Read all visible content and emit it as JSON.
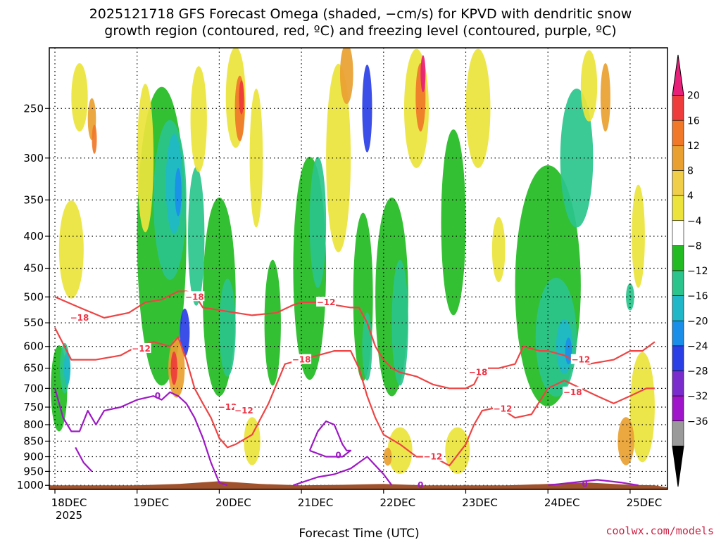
{
  "chart_data": {
    "type": "heatmap",
    "title_lines": [
      "2025121718 GFS Forecast Omega (shaded, −cm/s) for KPVD with dendritic snow",
      "growth region (contoured, red, ºC) and freezing level (contoured, purple, ºC)"
    ],
    "xlabel": "Forecast Time (UTC)",
    "ylabel": "",
    "x_ticks": [
      "18DEC",
      "19DEC",
      "20DEC",
      "21DEC",
      "22DEC",
      "23DEC",
      "24DEC",
      "25DEC"
    ],
    "x_year_label": "2025",
    "y_ticks": [
      250,
      300,
      350,
      400,
      450,
      500,
      550,
      600,
      650,
      700,
      750,
      800,
      850,
      900,
      950,
      1000
    ],
    "ylim_hpa": [
      200,
      1015
    ],
    "y_scale": "log",
    "grid": "dotted",
    "colorbar": {
      "labels": [
        "20",
        "16",
        "12",
        "8",
        "4",
        "−4",
        "−8",
        "−12",
        "−16",
        "−20",
        "−24",
        "−28",
        "−32",
        "−36"
      ],
      "colors": [
        "#e8207a",
        "#ee3b3b",
        "#f07828",
        "#e9a030",
        "#f1ce4a",
        "#ece43c",
        "#ffffff",
        "#22bb22",
        "#2ac48c",
        "#20b8c8",
        "#1a8ee8",
        "#2a40e6",
        "#7a2ccc",
        "#a015cc",
        "#9a9a9a",
        "#000000"
      ]
    },
    "red_contour_labels": [
      "−18",
      "−12",
      "−18",
      "−12",
      "−12",
      "−18",
      "−12",
      "−18",
      "−12",
      "−12",
      "−18",
      "−12"
    ],
    "purple_contour_labels": [
      "0",
      "0",
      "0",
      "0"
    ],
    "shaded_blobs": [
      {
        "t": 0.05,
        "p": 700,
        "dt": 0.1,
        "dp": 220,
        "c": "#22bb22"
      },
      {
        "t": 0.12,
        "p": 650,
        "dt": 0.06,
        "dp": 120,
        "c": "#2ac48c"
      },
      {
        "t": 0.15,
        "p": 650,
        "dt": 0.04,
        "dp": 80,
        "c": "#20b8c8"
      },
      {
        "t": 0.3,
        "p": 240,
        "dt": 0.1,
        "dp": 60,
        "c": "#ece43c"
      },
      {
        "t": 0.45,
        "p": 260,
        "dt": 0.05,
        "dp": 40,
        "c": "#e9a030"
      },
      {
        "t": 0.48,
        "p": 280,
        "dt": 0.03,
        "dp": 30,
        "c": "#f07828"
      },
      {
        "t": 0.2,
        "p": 420,
        "dt": 0.15,
        "dp": 150,
        "c": "#ece43c"
      },
      {
        "t": 1.3,
        "p": 400,
        "dt": 0.3,
        "dp": 400,
        "c": "#22bb22"
      },
      {
        "t": 1.4,
        "p": 350,
        "dt": 0.2,
        "dp": 200,
        "c": "#2ac48c"
      },
      {
        "t": 1.45,
        "p": 330,
        "dt": 0.1,
        "dp": 120,
        "c": "#20b8c8"
      },
      {
        "t": 1.5,
        "p": 340,
        "dt": 0.04,
        "dp": 60,
        "c": "#1a8ee8"
      },
      {
        "t": 1.58,
        "p": 570,
        "dt": 0.06,
        "dp": 100,
        "c": "#2a40e6"
      },
      {
        "t": 1.48,
        "p": 650,
        "dt": 0.1,
        "dp": 140,
        "c": "#e9a030"
      },
      {
        "t": 1.45,
        "p": 650,
        "dt": 0.04,
        "dp": 80,
        "c": "#ee3b3b"
      },
      {
        "t": 1.72,
        "p": 400,
        "dt": 0.1,
        "dp": 200,
        "c": "#2ac48c"
      },
      {
        "t": 1.1,
        "p": 300,
        "dt": 0.1,
        "dp": 160,
        "c": "#ece43c"
      },
      {
        "t": 1.75,
        "p": 260,
        "dt": 0.1,
        "dp": 100,
        "c": "#ece43c"
      },
      {
        "t": 2.2,
        "p": 240,
        "dt": 0.12,
        "dp": 100,
        "c": "#ece43c"
      },
      {
        "t": 2.25,
        "p": 250,
        "dt": 0.06,
        "dp": 60,
        "c": "#f07828"
      },
      {
        "t": 2.27,
        "p": 240,
        "dt": 0.03,
        "dp": 30,
        "c": "#ee3b3b"
      },
      {
        "t": 2.0,
        "p": 500,
        "dt": 0.2,
        "dp": 350,
        "c": "#22bb22"
      },
      {
        "t": 2.1,
        "p": 560,
        "dt": 0.1,
        "dp": 200,
        "c": "#2ac48c"
      },
      {
        "t": 2.45,
        "p": 300,
        "dt": 0.08,
        "dp": 150,
        "c": "#ece43c"
      },
      {
        "t": 2.4,
        "p": 850,
        "dt": 0.1,
        "dp": 150,
        "c": "#ece43c"
      },
      {
        "t": 2.65,
        "p": 550,
        "dt": 0.1,
        "dp": 250,
        "c": "#22bb22"
      },
      {
        "t": 3.1,
        "p": 450,
        "dt": 0.2,
        "dp": 350,
        "c": "#22bb22"
      },
      {
        "t": 3.2,
        "p": 380,
        "dt": 0.1,
        "dp": 180,
        "c": "#2ac48c"
      },
      {
        "t": 3.45,
        "p": 300,
        "dt": 0.15,
        "dp": 200,
        "c": "#ece43c"
      },
      {
        "t": 3.55,
        "p": 220,
        "dt": 0.08,
        "dp": 60,
        "c": "#e9a030"
      },
      {
        "t": 3.75,
        "p": 500,
        "dt": 0.12,
        "dp": 300,
        "c": "#22bb22"
      },
      {
        "t": 3.8,
        "p": 600,
        "dt": 0.06,
        "dp": 150,
        "c": "#2ac48c"
      },
      {
        "t": 3.8,
        "p": 250,
        "dt": 0.06,
        "dp": 80,
        "c": "#2a40e6"
      },
      {
        "t": 4.1,
        "p": 500,
        "dt": 0.2,
        "dp": 350,
        "c": "#22bb22"
      },
      {
        "t": 4.2,
        "p": 550,
        "dt": 0.1,
        "dp": 250,
        "c": "#2ac48c"
      },
      {
        "t": 4.4,
        "p": 250,
        "dt": 0.15,
        "dp": 120,
        "c": "#ece43c"
      },
      {
        "t": 4.45,
        "p": 240,
        "dt": 0.06,
        "dp": 60,
        "c": "#f07828"
      },
      {
        "t": 4.48,
        "p": 220,
        "dt": 0.03,
        "dp": 30,
        "c": "#e8207a"
      },
      {
        "t": 4.2,
        "p": 880,
        "dt": 0.15,
        "dp": 150,
        "c": "#ece43c"
      },
      {
        "t": 4.05,
        "p": 900,
        "dt": 0.05,
        "dp": 60,
        "c": "#e9a030"
      },
      {
        "t": 4.85,
        "p": 380,
        "dt": 0.15,
        "dp": 250,
        "c": "#22bb22"
      },
      {
        "t": 5.15,
        "p": 250,
        "dt": 0.15,
        "dp": 120,
        "c": "#ece43c"
      },
      {
        "t": 5.4,
        "p": 420,
        "dt": 0.08,
        "dp": 100,
        "c": "#ece43c"
      },
      {
        "t": 4.9,
        "p": 880,
        "dt": 0.15,
        "dp": 150,
        "c": "#ece43c"
      },
      {
        "t": 6.0,
        "p": 480,
        "dt": 0.4,
        "dp": 400,
        "c": "#22bb22"
      },
      {
        "t": 6.1,
        "p": 580,
        "dt": 0.25,
        "dp": 250,
        "c": "#2ac48c"
      },
      {
        "t": 6.2,
        "p": 600,
        "dt": 0.1,
        "dp": 120,
        "c": "#20b8c8"
      },
      {
        "t": 6.25,
        "p": 610,
        "dt": 0.04,
        "dp": 60,
        "c": "#1a8ee8"
      },
      {
        "t": 6.35,
        "p": 300,
        "dt": 0.2,
        "dp": 150,
        "c": "#2ac48c"
      },
      {
        "t": 6.5,
        "p": 230,
        "dt": 0.1,
        "dp": 60,
        "c": "#ece43c"
      },
      {
        "t": 6.7,
        "p": 240,
        "dt": 0.06,
        "dp": 60,
        "c": "#e9a030"
      },
      {
        "t": 7.15,
        "p": 750,
        "dt": 0.15,
        "dp": 300,
        "c": "#ece43c"
      },
      {
        "t": 6.95,
        "p": 850,
        "dt": 0.1,
        "dp": 150,
        "c": "#e9a030"
      },
      {
        "t": 7.1,
        "p": 400,
        "dt": 0.08,
        "dp": 150,
        "c": "#ece43c"
      },
      {
        "t": 7.0,
        "p": 500,
        "dt": 0.05,
        "dp": 50,
        "c": "#2ac48c"
      }
    ],
    "red_contours": [
      {
        "label": "−18",
        "pts": [
          [
            0,
            500
          ],
          [
            0.3,
            520
          ],
          [
            0.6,
            540
          ],
          [
            0.9,
            530
          ],
          [
            1.1,
            510
          ],
          [
            1.3,
            505
          ],
          [
            1.5,
            490
          ],
          [
            1.6,
            490
          ],
          [
            1.7,
            495
          ],
          [
            1.8,
            520
          ],
          [
            2.0,
            525
          ],
          [
            2.2,
            530
          ],
          [
            2.4,
            535
          ],
          [
            2.7,
            530
          ],
          [
            2.9,
            515
          ],
          [
            3.0,
            510
          ],
          [
            3.2,
            510
          ],
          [
            3.4,
            515
          ],
          [
            3.6,
            520
          ],
          [
            3.7,
            520
          ],
          [
            3.8,
            550
          ],
          [
            3.9,
            600
          ],
          [
            4.0,
            630
          ],
          [
            4.1,
            650
          ],
          [
            4.2,
            660
          ],
          [
            4.4,
            670
          ],
          [
            4.6,
            690
          ],
          [
            4.8,
            700
          ],
          [
            5.0,
            700
          ],
          [
            5.1,
            690
          ],
          [
            5.2,
            650
          ],
          [
            5.4,
            650
          ],
          [
            5.6,
            640
          ],
          [
            5.7,
            600
          ],
          [
            5.9,
            610
          ],
          [
            6.0,
            610
          ],
          [
            6.2,
            620
          ],
          [
            6.3,
            630
          ],
          [
            6.5,
            640
          ],
          [
            6.8,
            630
          ],
          [
            7.0,
            610
          ],
          [
            7.15,
            610
          ],
          [
            7.3,
            590
          ]
        ]
      },
      {
        "label": "−12",
        "pts": [
          [
            0,
            560
          ],
          [
            0.2,
            630
          ],
          [
            0.5,
            630
          ],
          [
            0.8,
            620
          ],
          [
            1.0,
            600
          ],
          [
            1.2,
            590
          ],
          [
            1.4,
            600
          ],
          [
            1.5,
            580
          ],
          [
            1.6,
            630
          ],
          [
            1.7,
            700
          ],
          [
            1.8,
            740
          ],
          [
            1.9,
            780
          ],
          [
            2.0,
            840
          ],
          [
            2.1,
            870
          ],
          [
            2.2,
            860
          ],
          [
            2.4,
            830
          ],
          [
            2.6,
            740
          ],
          [
            2.8,
            640
          ],
          [
            3.0,
            630
          ],
          [
            3.2,
            620
          ],
          [
            3.4,
            610
          ],
          [
            3.6,
            610
          ],
          [
            3.7,
            650
          ],
          [
            3.8,
            720
          ],
          [
            3.9,
            780
          ],
          [
            4.0,
            830
          ],
          [
            4.2,
            860
          ],
          [
            4.4,
            900
          ],
          [
            4.6,
            900
          ],
          [
            4.8,
            930
          ],
          [
            5.0,
            860
          ],
          [
            5.1,
            800
          ],
          [
            5.2,
            760
          ],
          [
            5.4,
            750
          ],
          [
            5.6,
            780
          ],
          [
            5.8,
            770
          ],
          [
            6.0,
            700
          ],
          [
            6.2,
            680
          ],
          [
            6.4,
            700
          ],
          [
            6.6,
            720
          ],
          [
            6.8,
            740
          ],
          [
            7.0,
            720
          ],
          [
            7.2,
            700
          ],
          [
            7.3,
            700
          ]
        ]
      }
    ],
    "purple_contours": [
      {
        "label": "0",
        "pts": [
          [
            0,
            700
          ],
          [
            0.1,
            780
          ],
          [
            0.2,
            820
          ],
          [
            0.3,
            820
          ],
          [
            0.4,
            760
          ],
          [
            0.5,
            800
          ],
          [
            0.6,
            760
          ],
          [
            0.8,
            750
          ],
          [
            1.0,
            730
          ],
          [
            1.2,
            720
          ],
          [
            1.3,
            730
          ],
          [
            1.4,
            710
          ],
          [
            1.5,
            720
          ],
          [
            1.6,
            740
          ],
          [
            1.7,
            780
          ],
          [
            1.8,
            840
          ],
          [
            1.9,
            920
          ],
          [
            2.0,
            990
          ],
          [
            2.1,
            1000
          ]
        ]
      },
      {
        "label": "0",
        "pts": [
          [
            3.1,
            880
          ],
          [
            3.2,
            820
          ],
          [
            3.3,
            790
          ],
          [
            3.4,
            800
          ],
          [
            3.5,
            860
          ],
          [
            3.55,
            880
          ],
          [
            3.6,
            880
          ],
          [
            3.5,
            900
          ],
          [
            3.3,
            900
          ],
          [
            3.1,
            880
          ]
        ]
      },
      {
        "label": "0",
        "pts": [
          [
            0.25,
            870
          ],
          [
            0.35,
            920
          ],
          [
            0.45,
            950
          ]
        ]
      },
      {
        "label": "0",
        "pts": [
          [
            2.9,
            1000
          ],
          [
            3.2,
            970
          ],
          [
            3.4,
            960
          ],
          [
            3.6,
            940
          ],
          [
            3.8,
            900
          ],
          [
            4.0,
            960
          ],
          [
            4.1,
            1000
          ]
        ]
      },
      {
        "label": "0",
        "pts": [
          [
            6.0,
            1000
          ],
          [
            6.3,
            990
          ],
          [
            6.6,
            980
          ],
          [
            6.9,
            990
          ],
          [
            7.1,
            1000
          ]
        ]
      }
    ],
    "terrain": {
      "color": "#a0522d",
      "pts": [
        [
          0,
          1000
        ],
        [
          1.0,
          1000
        ],
        [
          1.5,
          995
        ],
        [
          2.0,
          985
        ],
        [
          2.5,
          995
        ],
        [
          3.0,
          1000
        ],
        [
          3.5,
          998
        ],
        [
          4.0,
          995
        ],
        [
          4.5,
          1000
        ],
        [
          5.0,
          1000
        ],
        [
          5.5,
          1000
        ],
        [
          6.0,
          995
        ],
        [
          6.5,
          990
        ],
        [
          7.0,
          998
        ],
        [
          7.3,
          1000
        ]
      ]
    }
  },
  "credit": "coolwx.com/models"
}
